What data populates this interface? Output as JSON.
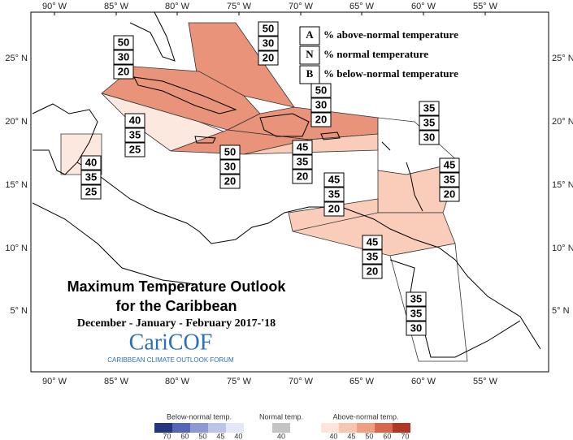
{
  "map": {
    "title": [
      "Maximum Temperature Outlook",
      "for the Caribbean"
    ],
    "subtitle": "December - January - February 2017-'18",
    "logo": "CariCOF",
    "logo_sub": "CARIBBEAN CLIMATE OUTLOOK FORUM",
    "lon_labels": [
      "90° W",
      "85° W",
      "80° W",
      "75° W",
      "70° W",
      "65° W",
      "60° W",
      "55° W"
    ],
    "lat_labels": [
      "25° N",
      "20° N",
      "15° N",
      "10° N",
      "5° N"
    ],
    "key": [
      {
        "letter": "A",
        "text": "% above-normal temperature"
      },
      {
        "letter": "N",
        "text": "% normal temperature"
      },
      {
        "letter": "B",
        "text": "% below-normal temperature"
      }
    ],
    "regions": [
      {
        "a": 50,
        "n": 30,
        "b": 20,
        "color": "#e8937a"
      },
      {
        "a": 50,
        "n": 30,
        "b": 20,
        "color": "#e8937a"
      },
      {
        "a": 40,
        "n": 35,
        "b": 25,
        "color": "#fde8e0"
      },
      {
        "a": 50,
        "n": 30,
        "b": 20,
        "color": "#e8937a"
      },
      {
        "a": 50,
        "n": 30,
        "b": 20,
        "color": "#e8937a"
      },
      {
        "a": 45,
        "n": 35,
        "b": 20,
        "color": "#f9cdb9"
      },
      {
        "a": 40,
        "n": 35,
        "b": 25,
        "color": "#fde8e0"
      },
      {
        "a": 35,
        "n": 35,
        "b": 30,
        "color": "#ffffff"
      },
      {
        "a": 45,
        "n": 35,
        "b": 20,
        "color": "#f9cdb9"
      },
      {
        "a": 45,
        "n": 35,
        "b": 20,
        "color": "#f9cdb9"
      },
      {
        "a": 45,
        "n": 35,
        "b": 20,
        "color": "#f9cdb9"
      },
      {
        "a": 35,
        "n": 35,
        "b": 30,
        "color": "#ffffff"
      }
    ],
    "colorbars": [
      {
        "label": "Below-normal temp.",
        "ticks": [
          70,
          60,
          50,
          45,
          40
        ],
        "colors": [
          "#26357f",
          "#5565b8",
          "#8d99d2",
          "#bcc4e8",
          "#e4e8f6"
        ]
      },
      {
        "label": "Normal temp.",
        "ticks": [
          40
        ],
        "colors": [
          "#c4c4c4"
        ]
      },
      {
        "label": "Above-normal temp.",
        "ticks": [
          40,
          45,
          50,
          60,
          70
        ],
        "colors": [
          "#fde5dc",
          "#f8c5b0",
          "#ee9f83",
          "#d8674c",
          "#b03626"
        ]
      }
    ]
  }
}
